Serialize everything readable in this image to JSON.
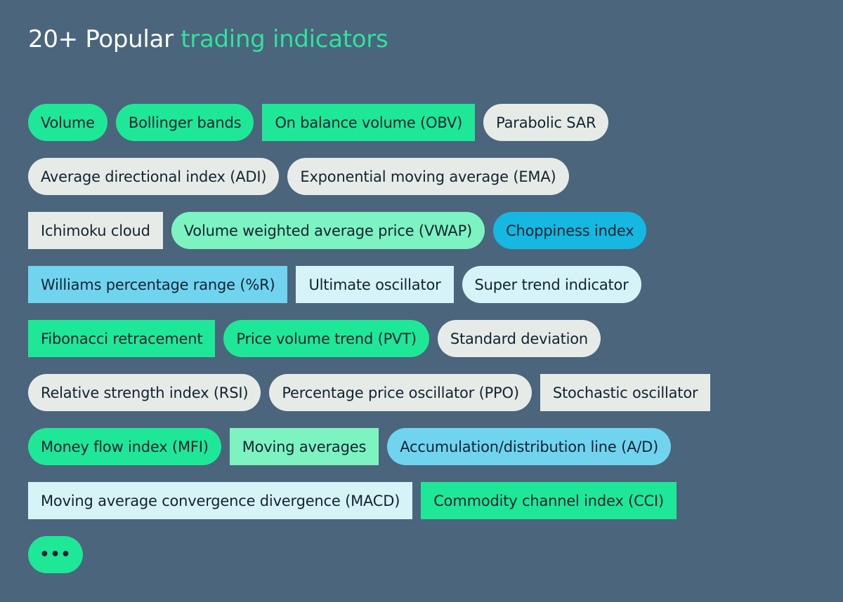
{
  "header": {
    "title_prefix": "20+ Popular ",
    "title_accent": "trading indicators"
  },
  "colors": {
    "background": "#4a657c",
    "green": "#1ee898",
    "mint": "#7df3c2",
    "gray": "#e7ebe8",
    "blue": "#14b8e0",
    "skyblue": "#70d4ef",
    "pale": "#d6f3f7"
  },
  "rows": [
    [
      {
        "label": "Volume",
        "shape": "pill",
        "color": "green"
      },
      {
        "label": "Bollinger bands",
        "shape": "pill",
        "color": "green"
      },
      {
        "label": "On balance volume (OBV)",
        "shape": "sq",
        "color": "green"
      },
      {
        "label": "Parabolic SAR",
        "shape": "pill",
        "color": "gray"
      }
    ],
    [
      {
        "label": "Average directional index (ADI)",
        "shape": "pill",
        "color": "gray"
      },
      {
        "label": "Exponential moving average (EMA)",
        "shape": "pill",
        "color": "gray"
      }
    ],
    [
      {
        "label": "Ichimoku cloud",
        "shape": "sq",
        "color": "gray"
      },
      {
        "label": "Volume weighted average price (VWAP)",
        "shape": "pill",
        "color": "mint"
      },
      {
        "label": "Choppiness index",
        "shape": "pill",
        "color": "blue"
      }
    ],
    [
      {
        "label": "Williams percentage range (%R)",
        "shape": "sq",
        "color": "skyblue"
      },
      {
        "label": "Ultimate oscillator",
        "shape": "sq",
        "color": "pale"
      },
      {
        "label": "Super trend indicator",
        "shape": "pill",
        "color": "pale"
      }
    ],
    [
      {
        "label": "Fibonacci retracement",
        "shape": "sq",
        "color": "green"
      },
      {
        "label": "Price volume trend (PVT)",
        "shape": "pill",
        "color": "green"
      },
      {
        "label": "Standard deviation",
        "shape": "pill",
        "color": "gray"
      }
    ],
    [
      {
        "label": "Relative strength index (RSI)",
        "shape": "pill",
        "color": "gray"
      },
      {
        "label": "Percentage price oscillator (PPO)",
        "shape": "pill",
        "color": "gray"
      },
      {
        "label": "Stochastic oscillator",
        "shape": "sq",
        "color": "gray"
      }
    ],
    [
      {
        "label": "Money flow index (MFI)",
        "shape": "pill",
        "color": "green"
      },
      {
        "label": "Moving averages",
        "shape": "sq",
        "color": "mint"
      },
      {
        "label": "Accumulation/distribution line (A/D)",
        "shape": "pill",
        "color": "skyblue"
      }
    ],
    [
      {
        "label": "Moving average convergence divergence (MACD)",
        "shape": "sq",
        "color": "pale"
      },
      {
        "label": "Commodity channel index (CCI)",
        "shape": "sq",
        "color": "green"
      }
    ],
    [
      {
        "label": "•••",
        "shape": "pill",
        "color": "green",
        "more": true
      }
    ]
  ]
}
